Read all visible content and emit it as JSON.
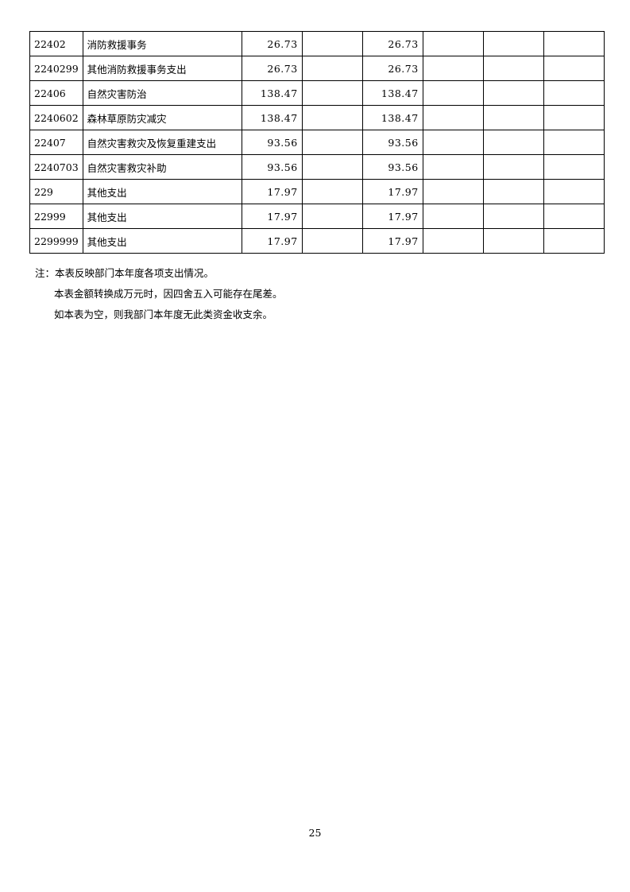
{
  "table": {
    "rows": [
      [
        "22402",
        "消防救援事务",
        "26.73",
        "",
        "26.73",
        "",
        "",
        ""
      ],
      [
        "2240299",
        "其他消防救援事务支出",
        "26.73",
        "",
        "26.73",
        "",
        "",
        ""
      ],
      [
        "22406",
        "自然灾害防治",
        "138.47",
        "",
        "138.47",
        "",
        "",
        ""
      ],
      [
        "2240602",
        "森林草原防灾减灾",
        "138.47",
        "",
        "138.47",
        "",
        "",
        ""
      ],
      [
        "22407",
        "自然灾害救灾及恢复重建支出",
        "93.56",
        "",
        "93.56",
        "",
        "",
        ""
      ],
      [
        "2240703",
        "自然灾害救灾补助",
        "93.56",
        "",
        "93.56",
        "",
        "",
        ""
      ],
      [
        "229",
        "其他支出",
        "17.97",
        "",
        "17.97",
        "",
        "",
        ""
      ],
      [
        "22999",
        "其他支出",
        "17.97",
        "",
        "17.97",
        "",
        "",
        ""
      ],
      [
        "2299999",
        "其他支出",
        "17.97",
        "",
        "17.97",
        "",
        "",
        ""
      ]
    ]
  },
  "notes": [
    "注：本表反映部门本年度各项支出情况。",
    "本表金额转换成万元时，因四舍五入可能存在尾差。",
    "如本表为空，则我部门本年度无此类资金收支余。"
  ],
  "page_number": "25"
}
